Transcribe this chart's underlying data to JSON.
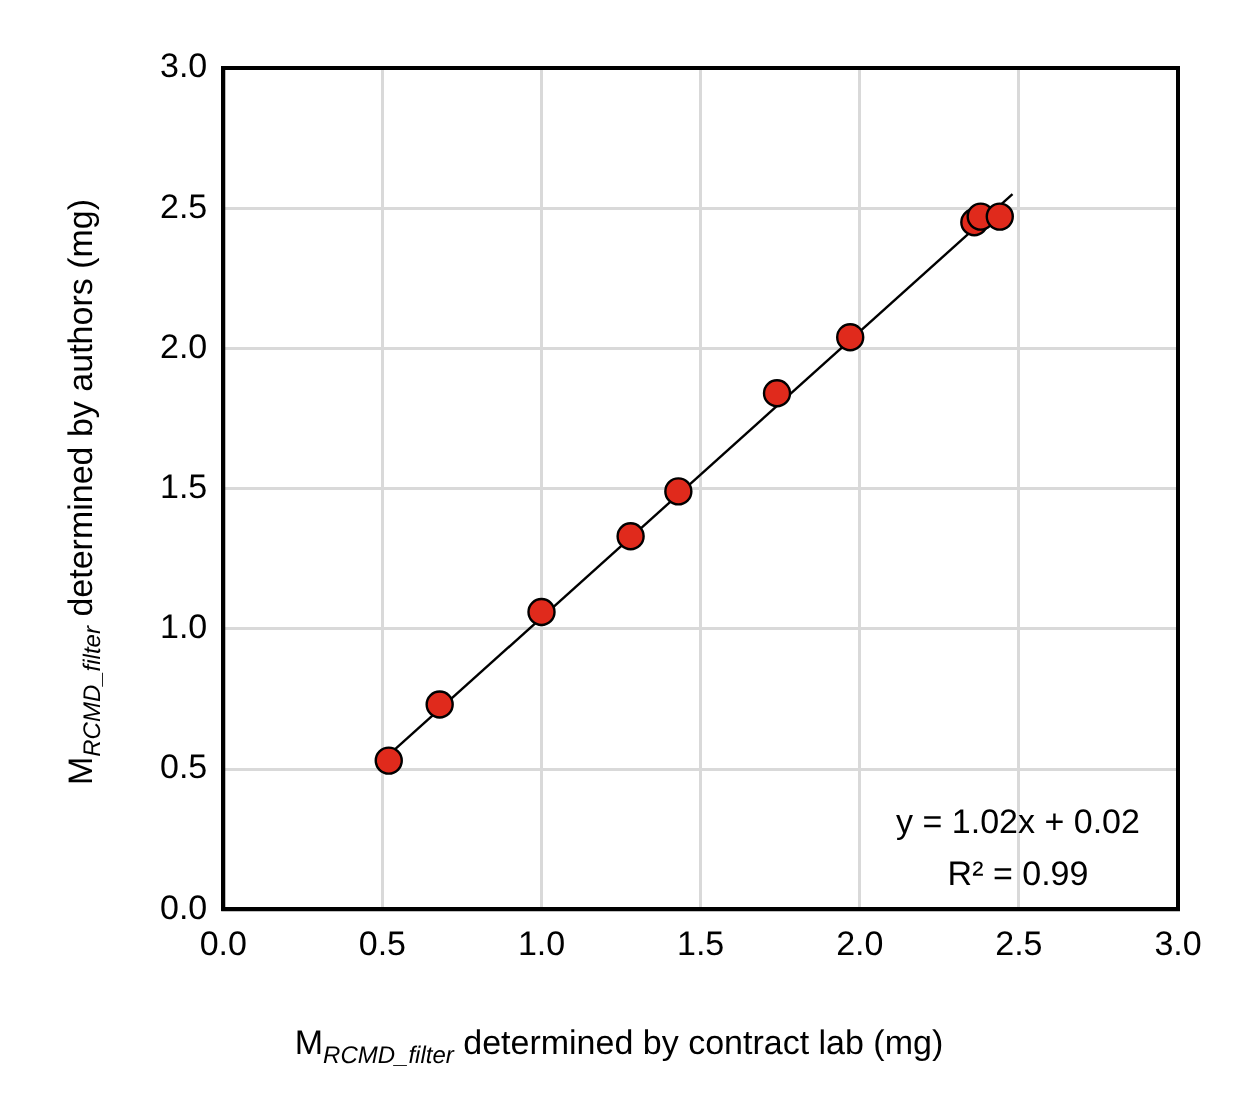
{
  "chart_data": {
    "type": "scatter",
    "xlabel": "M$_{RCMD_filter}$ determined by contract lab (mg)",
    "ylabel": "M$_{RCMD_filter}$ determined by authors (mg)",
    "series": [
      {
        "type": "scatter",
        "marker": "circle",
        "color": "#e02a1c",
        "x": [
          0.52,
          0.68,
          1.0,
          1.28,
          1.43,
          1.74,
          1.97,
          2.36,
          2.38,
          2.44
        ],
        "values": [
          0.53,
          0.73,
          1.06,
          1.33,
          1.49,
          1.84,
          2.04,
          2.45,
          2.47,
          2.47
        ]
      },
      {
        "type": "line",
        "color": "#000000",
        "x": [
          0.52,
          2.48
        ],
        "values": [
          0.55,
          2.55
        ]
      }
    ],
    "xlim": [
      0,
      3
    ],
    "ylim": [
      0,
      3
    ],
    "xticks": [
      {
        "value": 0,
        "label": "0.0"
      },
      {
        "value": 0.5,
        "label": "0.5"
      },
      {
        "value": 1,
        "label": "1.0"
      },
      {
        "value": 1.5,
        "label": "1.5"
      },
      {
        "value": 2,
        "label": "2.0"
      },
      {
        "value": 2.5,
        "label": "2.5"
      },
      {
        "value": 3,
        "label": "3.0"
      }
    ],
    "yticks": [
      {
        "value": 0,
        "label": "0.0"
      },
      {
        "value": 0.5,
        "label": "0.5"
      },
      {
        "value": 1,
        "label": "1.0"
      },
      {
        "value": 1.5,
        "label": "1.5"
      },
      {
        "value": 2,
        "label": "2.0"
      },
      {
        "value": 2.5,
        "label": "2.5"
      },
      {
        "value": 3,
        "label": "3.0"
      }
    ],
    "annotations": [
      "y = 1.02x + 0.02",
      "R² = 0.99"
    ],
    "grid": true,
    "legend": false
  }
}
